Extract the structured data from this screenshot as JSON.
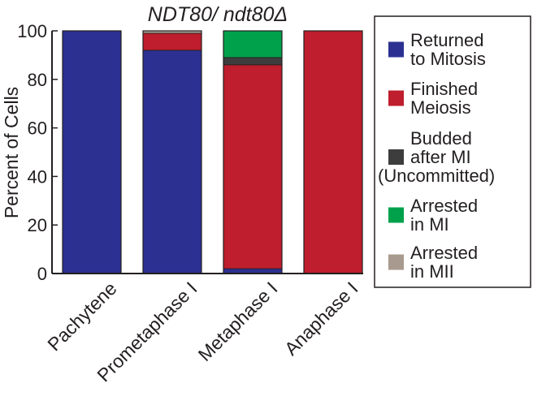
{
  "chart_data": {
    "type": "bar",
    "stacked": true,
    "title": "NDT80/ ndt80Δ",
    "xlabel": "",
    "ylabel": "Percent of Cells",
    "ylim": [
      0,
      100
    ],
    "yticks": [
      0,
      20,
      40,
      60,
      80,
      100
    ],
    "grid": false,
    "legend_position": "right",
    "categories": [
      "Pachytene",
      "Prometaphase I",
      "Metaphase I",
      "Anaphase I"
    ],
    "series": [
      {
        "name": "Returned to Mitosis",
        "legend_lines": [
          "Returned",
          "to Mitosis"
        ],
        "color": "#2c3191",
        "values": [
          100,
          92,
          2,
          0
        ]
      },
      {
        "name": "Finished Meiosis",
        "legend_lines": [
          "Finished",
          "Meiosis"
        ],
        "color": "#be1e2d",
        "values": [
          0,
          7,
          84,
          100
        ]
      },
      {
        "name": "Budded after MI (Uncommitted)",
        "legend_lines": [
          "Budded",
          "after MI",
          "(Uncommitted)"
        ],
        "color": "#3d3d3d",
        "values": [
          0,
          0,
          3,
          0
        ]
      },
      {
        "name": "Arrested in MI",
        "legend_lines": [
          "Arrested",
          "in MI"
        ],
        "color": "#00a14b",
        "values": [
          0,
          0,
          11,
          0
        ]
      },
      {
        "name": "Arrested in MII",
        "legend_lines": [
          "Arrested",
          "in MII"
        ],
        "color": "#a89a8e",
        "values": [
          0,
          1,
          0,
          0
        ]
      }
    ]
  }
}
